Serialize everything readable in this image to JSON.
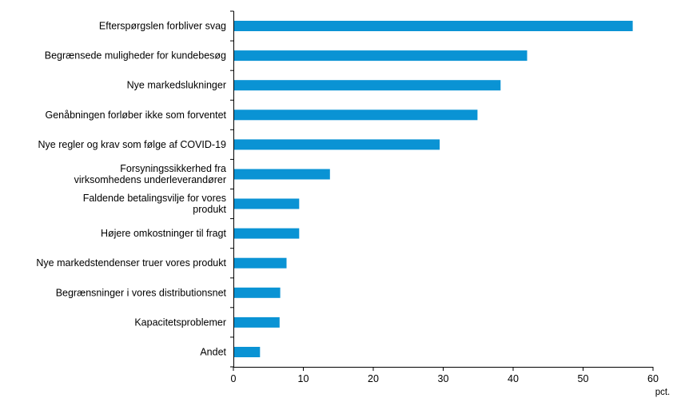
{
  "chart_data": {
    "type": "bar",
    "orientation": "horizontal",
    "categories": [
      "Efterspørgslen forbliver svag",
      "Begrænsede muligheder for kundebesøg",
      "Nye markedslukninger",
      "Genåbningen forløber ikke som forventet",
      "Nye regler og krav som følge af COVID-19",
      "Forsyningssikkerhed fra virksomhedens underleverandører",
      "Faldende betalingsvilje for vores produkt",
      "Højere omkostninger til fragt",
      "Nye markedstendenser truer vores produkt",
      "Begrænsninger i vores distributionsnet",
      "Kapacitetsproblemer",
      "Andet"
    ],
    "values": [
      57.1,
      42.0,
      38.2,
      34.9,
      29.5,
      13.8,
      9.4,
      9.4,
      7.6,
      6.7,
      6.6,
      3.8
    ],
    "xlim": [
      0,
      60
    ],
    "xticks": [
      0,
      10,
      20,
      30,
      40,
      50,
      60
    ],
    "xlabel": "pct.",
    "bar_color": "#0a93d4",
    "axis_color": "#000000",
    "grid": false
  }
}
